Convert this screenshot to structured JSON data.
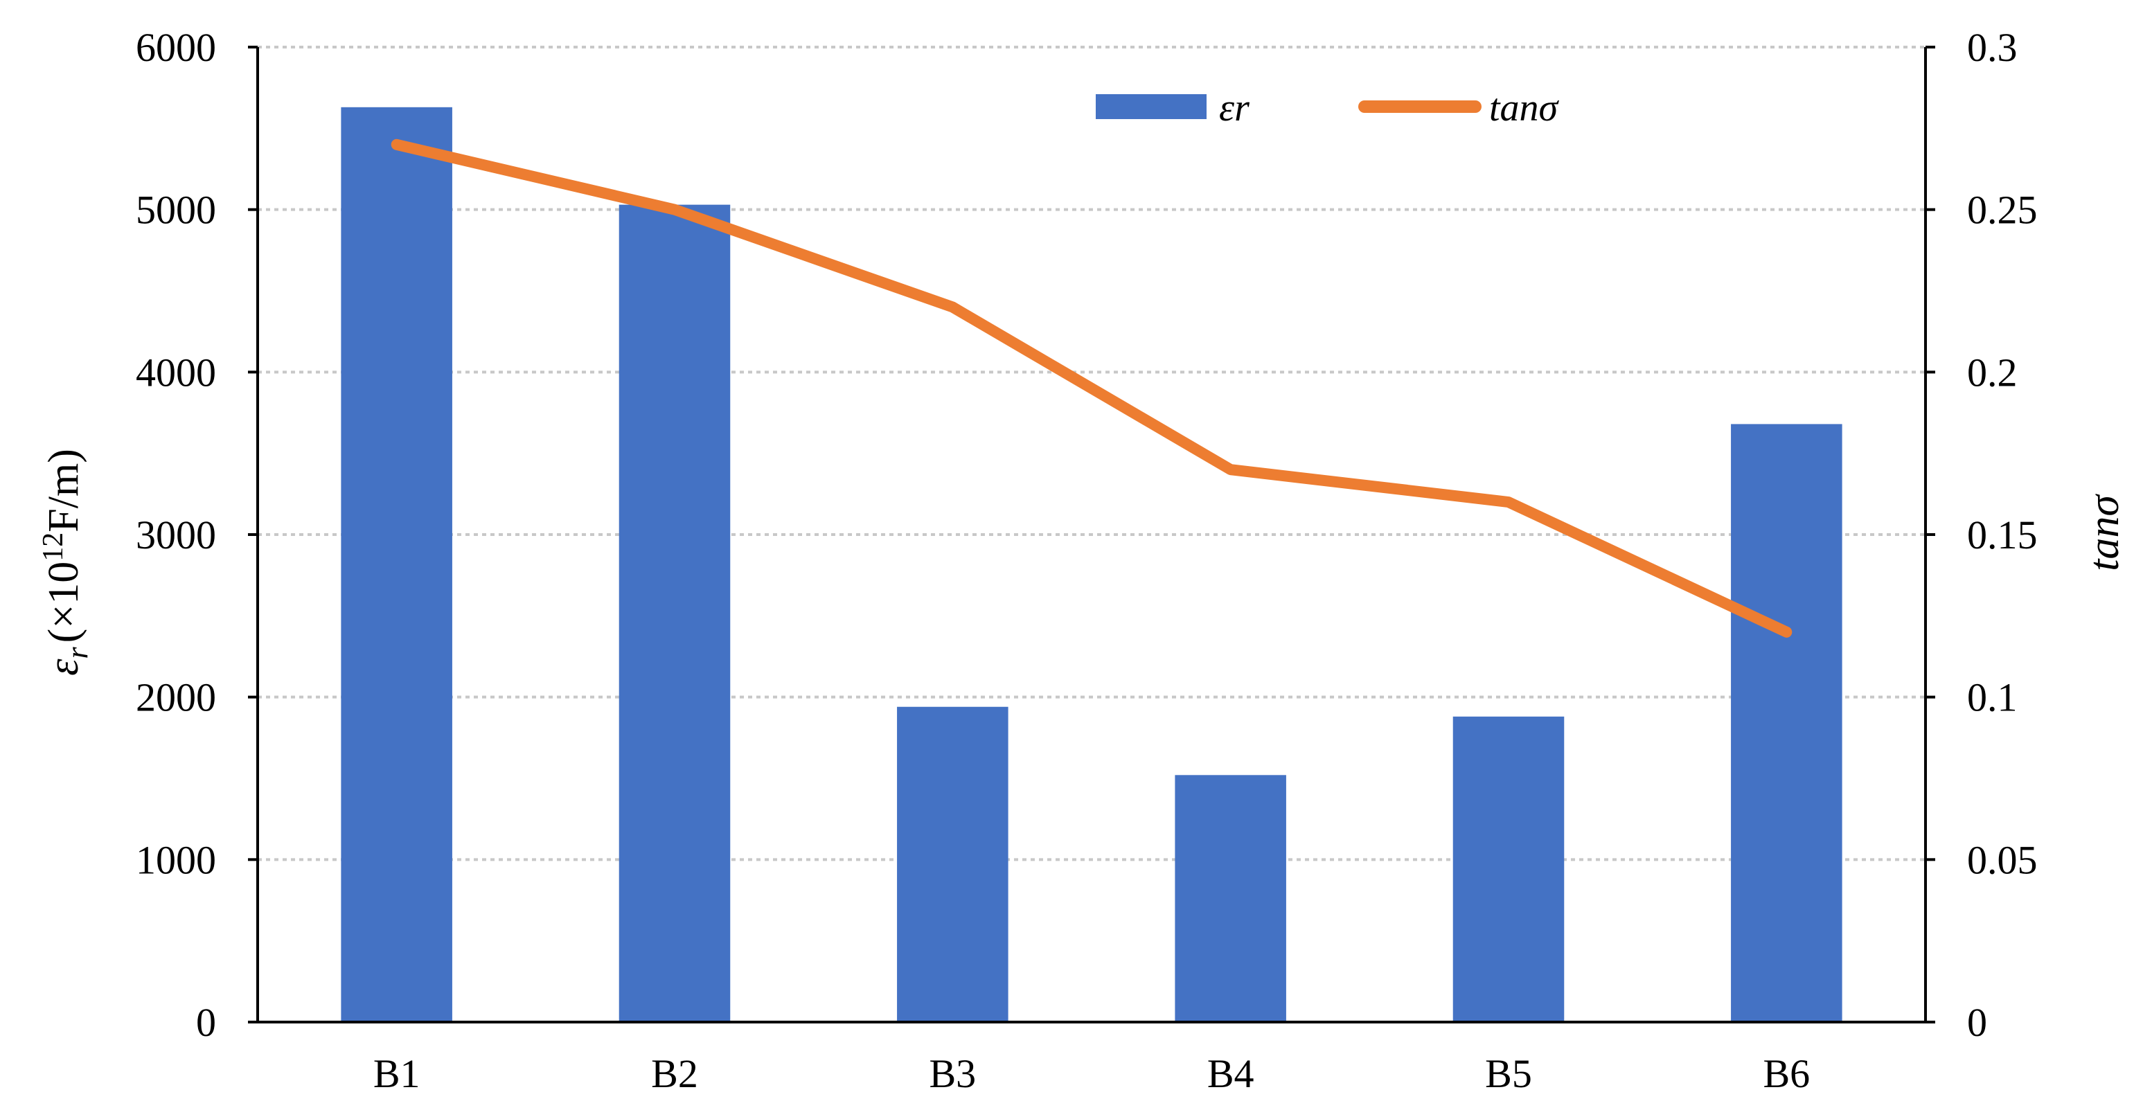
{
  "chart_data": {
    "type": "bar",
    "categories": [
      "B1",
      "B2",
      "B3",
      "B4",
      "B5",
      "B6"
    ],
    "series": [
      {
        "name": "εr",
        "kind": "bar",
        "axis": "left",
        "color": "#4472C4",
        "values": [
          5630,
          5030,
          1940,
          1520,
          1880,
          3680
        ]
      },
      {
        "name": "tanσ",
        "kind": "line",
        "axis": "right",
        "color": "#ED7D31",
        "values": [
          0.27,
          0.25,
          0.22,
          0.17,
          0.16,
          0.12
        ]
      }
    ],
    "y_left": {
      "label_main": "ε",
      "label_sub": "r",
      "label_rest": "(×10",
      "label_sup": "12",
      "label_unit": "F/m)",
      "ylim": [
        0,
        6000
      ],
      "ticks": [
        "0",
        "1000",
        "2000",
        "3000",
        "4000",
        "5000",
        "6000"
      ]
    },
    "y_right": {
      "label": "tanσ",
      "ylim": [
        0,
        0.3
      ],
      "ticks": [
        "0",
        "0.05",
        "0.1",
        "0.15",
        "0.2",
        "0.25",
        "0.3"
      ]
    },
    "grid": true,
    "legend_position": "top-center"
  }
}
